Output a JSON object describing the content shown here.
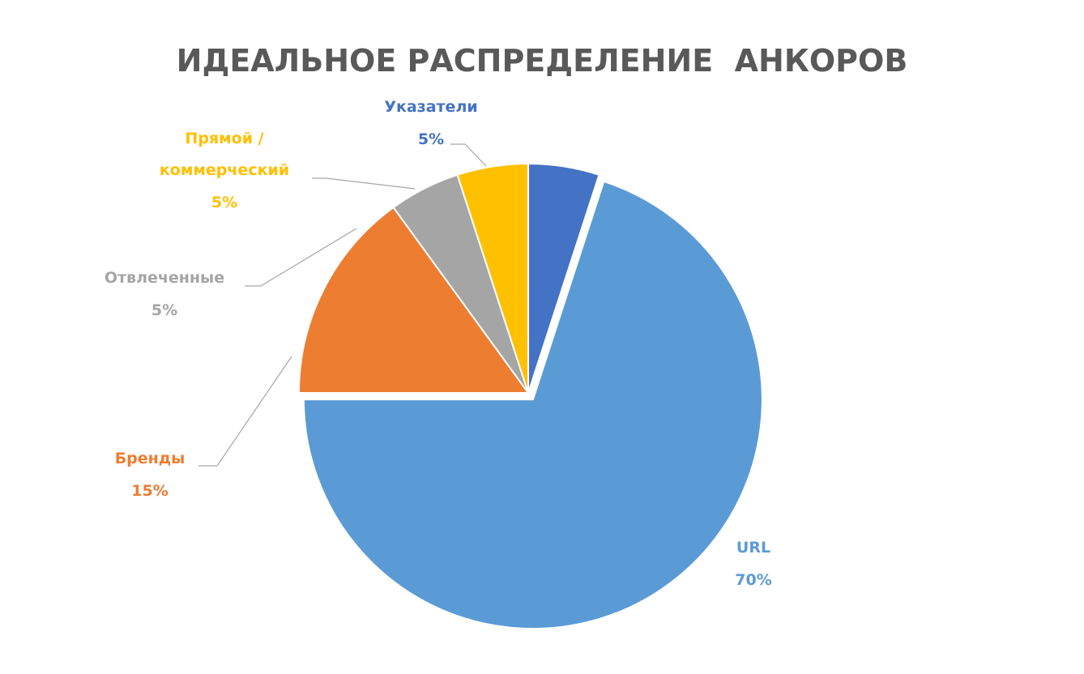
{
  "chart_data": {
    "type": "pie",
    "title": "ИДЕАЛЬНОЕ РАСПРЕДЕЛЕНИЕ  АНКОРОВ",
    "slices": [
      {
        "label": "Указатели",
        "value": 5,
        "percent_label": "5%",
        "color": "#4472c4",
        "exploded": false
      },
      {
        "label": "URL",
        "value": 70,
        "percent_label": "70%",
        "color": "#5b9bd5",
        "exploded": true
      },
      {
        "label": "Бренды",
        "value": 15,
        "percent_label": "15%",
        "color": "#ed7d31",
        "exploded": false
      },
      {
        "label": "Отвлеченные",
        "value": 5,
        "percent_label": "5%",
        "color": "#a5a5a5",
        "exploded": false
      },
      {
        "label": "Прямой / коммерческий",
        "value": 5,
        "percent_label": "5%",
        "color": "#ffc000",
        "exploded": false
      }
    ],
    "start_angle": "12 o'clock",
    "direction": "clockwise",
    "legend": "none",
    "data_labels": "category and percent, outside with leader lines"
  }
}
